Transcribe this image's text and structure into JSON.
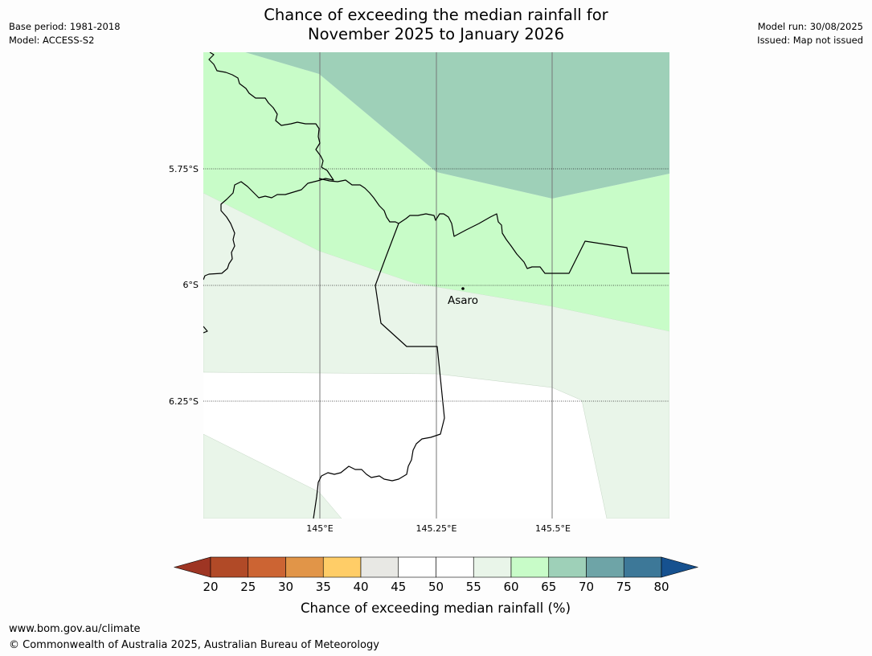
{
  "header": {
    "title_line1": "Chance of exceeding the median rainfall for",
    "title_line2": "November 2025 to January 2026",
    "base_period": "Base period: 1981-2018",
    "model": "Model: ACCESS-S2",
    "model_run": "Model run: 30/08/2025",
    "issued": "Issued: Map not issued"
  },
  "map": {
    "lat_labels": [
      "5.75°S",
      "6°S",
      "6.25°S"
    ],
    "lon_labels": [
      "145°E",
      "145.25°E",
      "145.5°E"
    ],
    "place": {
      "name": "Asaro"
    }
  },
  "legend": {
    "title": "Chance of exceeding median rainfall (%)",
    "tick_labels": [
      "20",
      "25",
      "30",
      "35",
      "40",
      "45",
      "50",
      "55",
      "60",
      "65",
      "70",
      "75",
      "80"
    ],
    "colors": [
      "#9e3523",
      "#b14a27",
      "#cc6433",
      "#e19548",
      "#ffcd67",
      "#e8e8e4",
      "#ffffff",
      "#ffffff",
      "#e9f5e9",
      "#c8fcc8",
      "#9ed0b8",
      "#6ea4a7",
      "#3d7898",
      "#16518f"
    ]
  },
  "footer": {
    "website": "www.bom.gov.au/climate",
    "copyright": "© Commonwealth of Australia 2025, Australian Bureau of Meteorology"
  }
}
